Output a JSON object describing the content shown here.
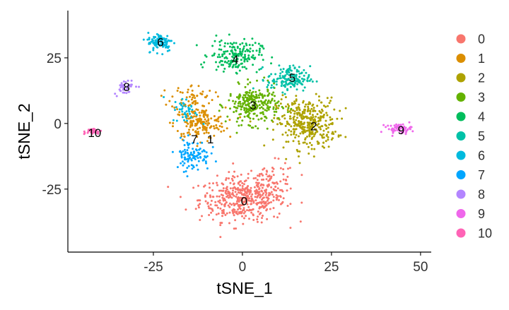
{
  "chart_data": {
    "type": "scatter",
    "title": "",
    "xlabel": "tSNE_1",
    "ylabel": "tSNE_2",
    "xlim": [
      -49,
      53
    ],
    "ylim": [
      -49,
      43
    ],
    "x_ticks": [
      {
        "value": -25,
        "label": "-25"
      },
      {
        "value": 0,
        "label": "0"
      },
      {
        "value": 25,
        "label": "25"
      },
      {
        "value": 50,
        "label": "50"
      }
    ],
    "y_ticks": [
      {
        "value": -25,
        "label": "-25"
      },
      {
        "value": 0,
        "label": "0"
      },
      {
        "value": 25,
        "label": "25"
      }
    ],
    "grid": false,
    "legend_position": "right",
    "series": [
      {
        "name": "0",
        "color": "#F8766D",
        "label_at": [
          0.5,
          -29.5
        ],
        "clusters": [
          {
            "center": [
              0,
              -29
            ],
            "spread": [
              10,
              7
            ],
            "n": 420
          },
          {
            "center": [
              8,
              -22
            ],
            "spread": [
              6,
              6
            ],
            "n": 80
          }
        ]
      },
      {
        "name": "1",
        "color": "#DB8E00",
        "label_at": [
          -9,
          -6
        ],
        "clusters": [
          {
            "center": [
              -12,
              0
            ],
            "spread": [
              6,
              5
            ],
            "n": 170
          },
          {
            "center": [
              -14,
              10
            ],
            "spread": [
              5,
              4
            ],
            "n": 60
          }
        ]
      },
      {
        "name": "2",
        "color": "#AEA200",
        "label_at": [
          20,
          -1
        ],
        "clusters": [
          {
            "center": [
              18,
              0
            ],
            "spread": [
              7,
              8
            ],
            "n": 360
          }
        ]
      },
      {
        "name": "3",
        "color": "#64B200",
        "label_at": [
          3,
          7
        ],
        "clusters": [
          {
            "center": [
              3,
              7
            ],
            "spread": [
              6,
              6
            ],
            "n": 260
          }
        ]
      },
      {
        "name": "4",
        "color": "#00BD5C",
        "label_at": [
          -2,
          24.5
        ],
        "clusters": [
          {
            "center": [
              -2,
              26
            ],
            "spread": [
              6,
              5
            ],
            "n": 180
          }
        ]
      },
      {
        "name": "5",
        "color": "#00C1A7",
        "label_at": [
          14,
          17.5
        ],
        "clusters": [
          {
            "center": [
              13,
              17
            ],
            "spread": [
              5,
              4
            ],
            "n": 150
          }
        ]
      },
      {
        "name": "6",
        "color": "#00BADE",
        "label_at": [
          -23,
          31
        ],
        "clusters": [
          {
            "center": [
              -23,
              31
            ],
            "spread": [
              3,
              3
            ],
            "n": 100
          },
          {
            "center": [
              -16,
              5
            ],
            "spread": [
              3,
              4
            ],
            "n": 40
          }
        ]
      },
      {
        "name": "7",
        "color": "#00A6FF",
        "label_at": [
          -13.5,
          -6
        ],
        "clusters": [
          {
            "center": [
              -14,
              -12
            ],
            "spread": [
              4,
              5
            ],
            "n": 100
          }
        ]
      },
      {
        "name": "8",
        "color": "#B385FF",
        "label_at": [
          -32.5,
          14
        ],
        "clusters": [
          {
            "center": [
              -33,
              14
            ],
            "spread": [
              2.5,
              2.5
            ],
            "n": 40
          }
        ]
      },
      {
        "name": "9",
        "color": "#EF67EB",
        "label_at": [
          44.5,
          -2.5
        ],
        "clusters": [
          {
            "center": [
              44,
              -2
            ],
            "spread": [
              3,
              1.5
            ],
            "n": 55
          }
        ]
      },
      {
        "name": "10",
        "color": "#FF63B6",
        "label_at": [
          -41.5,
          -3.5
        ],
        "clusters": [
          {
            "center": [
              -42,
              -3
            ],
            "spread": [
              2,
              1
            ],
            "n": 30
          }
        ]
      }
    ]
  }
}
